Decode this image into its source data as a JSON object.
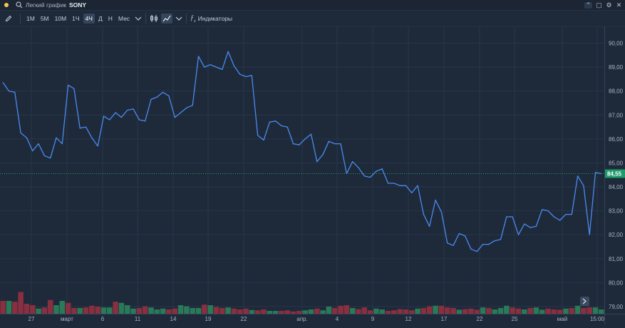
{
  "header": {
    "title": "Легкий график",
    "symbol": "SONY"
  },
  "toolbar": {
    "intervals": [
      "1М",
      "5М",
      "10М",
      "1Ч",
      "4Ч",
      "Д",
      "Н",
      "Мес"
    ],
    "active_interval": "4Ч",
    "indicators_label": "Индикаторы"
  },
  "icons": [
    "pencil-icon",
    "search-icon",
    "chevron-down-icon",
    "candles-icon",
    "line-chart-icon",
    "fx-icon",
    "chevron-up-icon",
    "square-icon",
    "gear-icon",
    "close-icon",
    "goto-realtime-icon"
  ],
  "colors": {
    "background": "#1e2a3a",
    "line": "#4a8af0",
    "volume_up": "#2a7a5a",
    "volume_down": "#8a2f3f",
    "price_label": "#1e9b6a"
  },
  "chart_data": {
    "type": "line",
    "yticks": [
      "90,00",
      "89,00",
      "88,00",
      "87,00",
      "86,00",
      "85,00",
      "84,00",
      "83,00",
      "82,00",
      "81,00",
      "80,00",
      "79,00"
    ],
    "ylim": [
      78.7,
      90.7
    ],
    "xticks": [
      "27",
      "март",
      "6",
      "11",
      "14",
      "19",
      "22",
      "апр.",
      "4",
      "9",
      "12",
      "17",
      "22",
      "25",
      "май",
      "15:00"
    ],
    "last_price": "84,55",
    "series": [
      {
        "values": [
          88.35,
          88.0,
          87.95,
          86.25,
          86.05,
          85.5,
          85.8,
          85.3,
          85.2,
          86.05,
          85.8,
          88.25,
          88.1,
          86.45,
          86.5,
          86.05,
          85.7,
          86.95,
          86.8,
          87.1,
          86.9,
          87.2,
          87.25,
          86.8,
          86.75,
          87.65,
          87.75,
          87.95,
          87.8,
          86.9,
          87.1,
          87.3,
          87.4,
          89.45,
          89.0,
          89.1,
          89.0,
          88.9,
          89.65,
          89.05,
          88.7,
          88.6,
          88.65,
          86.15,
          85.95,
          86.7,
          86.75,
          86.55,
          86.5,
          85.8,
          85.75,
          86.0,
          86.2,
          85.05,
          85.35,
          85.9,
          85.8,
          85.8,
          84.55,
          85.05,
          84.8,
          84.45,
          84.4,
          84.65,
          84.75,
          84.15,
          84.15,
          84.05,
          84.05,
          83.75,
          84.05,
          82.85,
          82.35,
          83.45,
          82.95,
          81.65,
          81.55,
          82.05,
          81.95,
          81.4,
          81.3,
          81.6,
          81.6,
          81.75,
          81.8,
          82.75,
          82.75,
          82.0,
          82.45,
          82.3,
          82.35,
          83.05,
          83.0,
          82.75,
          82.6,
          82.85,
          82.85,
          84.45,
          84.05,
          82.0,
          84.6,
          84.55
        ]
      }
    ],
    "volume": {
      "values": [
        0.45,
        0.45,
        0.42,
        0.76,
        0.35,
        0.3,
        0.18,
        0.22,
        0.48,
        0.3,
        0.45,
        0.38,
        0.2,
        0.2,
        0.22,
        0.28,
        0.25,
        0.22,
        0.22,
        0.42,
        0.38,
        0.3,
        0.18,
        0.2,
        0.26,
        0.22,
        0.15,
        0.18,
        0.15,
        0.18,
        0.3,
        0.26,
        0.2,
        0.2,
        0.32,
        0.3,
        0.24,
        0.2,
        0.22,
        0.18,
        0.15,
        0.18,
        0.13,
        0.12,
        0.15,
        0.1,
        0.1,
        0.1,
        0.12,
        0.08,
        0.1,
        0.12,
        0.15,
        0.18,
        0.12,
        0.25,
        0.2,
        0.28,
        0.3,
        0.2,
        0.16,
        0.22,
        0.12,
        0.18,
        0.15,
        0.1,
        0.12,
        0.16,
        0.15,
        0.12,
        0.18,
        0.2,
        0.26,
        0.28,
        0.28,
        0.22,
        0.2,
        0.14,
        0.16,
        0.18,
        0.14,
        0.22,
        0.2,
        0.15,
        0.2,
        0.28,
        0.22,
        0.18,
        0.15,
        0.2,
        0.22,
        0.14,
        0.18,
        0.15,
        0.14,
        0.18,
        0.2,
        0.28,
        0.2,
        0.22,
        0.22,
        0.15
      ],
      "directions": [
        "down",
        "up",
        "down",
        "down",
        "down",
        "down",
        "up",
        "down",
        "down",
        "up",
        "up",
        "down",
        "down",
        "up",
        "down",
        "down",
        "down",
        "up",
        "up",
        "down",
        "up",
        "up",
        "up",
        "down",
        "down",
        "up",
        "up",
        "up",
        "down",
        "down",
        "up",
        "up",
        "up",
        "up",
        "down",
        "up",
        "down",
        "down",
        "up",
        "down",
        "down",
        "down",
        "up",
        "down",
        "down",
        "up",
        "up",
        "down",
        "down",
        "down",
        "down",
        "up",
        "up",
        "down",
        "up",
        "up",
        "down",
        "down",
        "down",
        "up",
        "down",
        "down",
        "down",
        "up",
        "up",
        "down",
        "down",
        "down",
        "down",
        "down",
        "up",
        "down",
        "down",
        "up",
        "down",
        "down",
        "down",
        "up",
        "down",
        "down",
        "down",
        "up",
        "down",
        "up",
        "up",
        "up",
        "down",
        "down",
        "up",
        "down",
        "up",
        "up",
        "down",
        "down",
        "down",
        "up",
        "down",
        "up",
        "down",
        "down",
        "up",
        "up"
      ]
    }
  }
}
